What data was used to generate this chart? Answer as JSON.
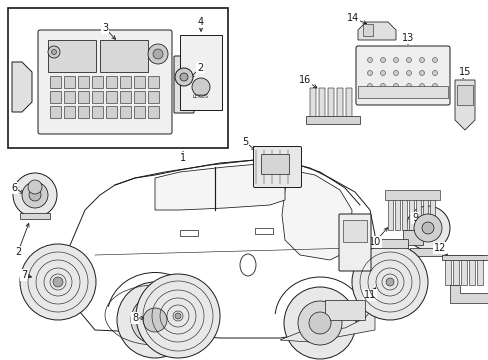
{
  "bg_color": "#ffffff",
  "fig_width": 4.89,
  "fig_height": 3.6,
  "dpi": 100,
  "line_color": "#1a1a1a",
  "line_width": 0.7,
  "label_fontsize": 7.0
}
